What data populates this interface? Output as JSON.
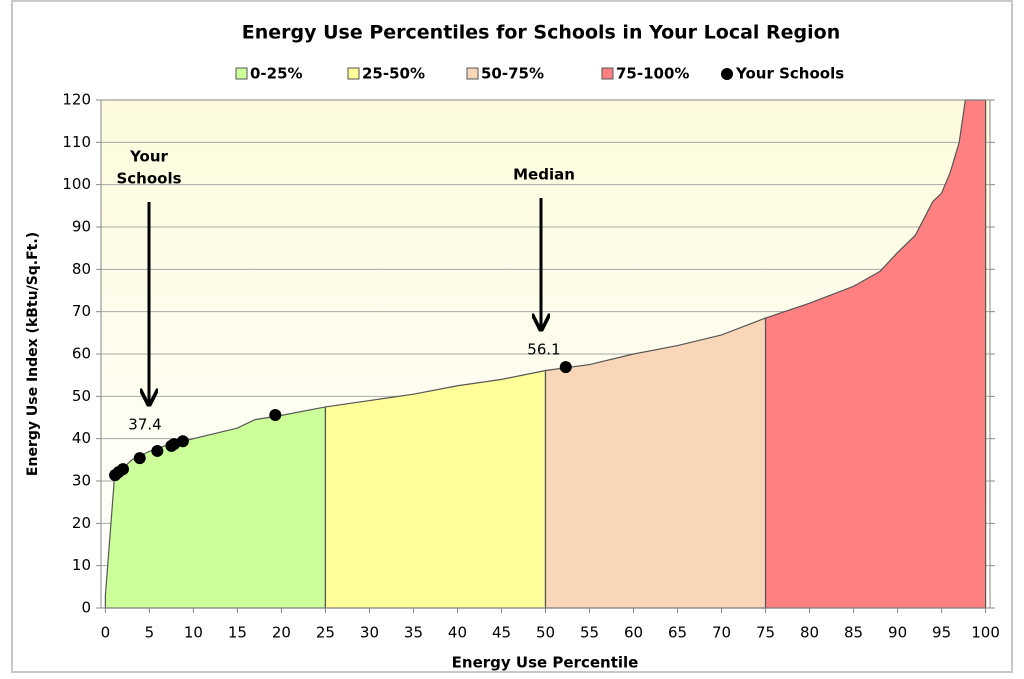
{
  "chart_data": {
    "type": "area",
    "title": "Energy Use Percentiles for Schools in Your Local Region",
    "x_label": "Energy Use Percentile",
    "y_label": "Energy Use Index  (kBtu/Sq.Ft.)",
    "xlim": [
      -0.5,
      100.5
    ],
    "ylim": [
      0,
      120
    ],
    "xticks": [
      0,
      5,
      10,
      15,
      20,
      25,
      30,
      35,
      40,
      45,
      50,
      55,
      60,
      65,
      70,
      75,
      80,
      85,
      90,
      95,
      100
    ],
    "yticks": [
      0,
      10,
      20,
      30,
      40,
      50,
      60,
      70,
      80,
      90,
      100,
      110,
      120
    ],
    "grid": true,
    "series": [
      {
        "name": "0-25%",
        "color": "#ccff99",
        "x": [
          0,
          1,
          2,
          3,
          5,
          7,
          10,
          15,
          17,
          20,
          25
        ],
        "values": [
          3,
          30,
          33,
          35,
          37,
          38.5,
          40,
          42.5,
          44.5,
          45.5,
          47.5
        ]
      },
      {
        "name": "25-50%",
        "color": "#ffff99",
        "x": [
          25,
          30,
          35,
          40,
          45,
          50
        ],
        "values": [
          47.5,
          49,
          50.5,
          52.5,
          54,
          56.1
        ]
      },
      {
        "name": "50-75%",
        "color": "#f9d6b8",
        "x": [
          50,
          55,
          60,
          65,
          70,
          75
        ],
        "values": [
          56.1,
          57.5,
          60,
          62,
          64.5,
          68.5
        ]
      },
      {
        "name": "75-100%",
        "color": "#ff8080",
        "x": [
          75,
          80,
          85,
          88,
          90,
          92,
          94,
          95,
          96,
          97,
          97.7,
          100
        ],
        "values": [
          68.5,
          72,
          76,
          79.5,
          84,
          88,
          96,
          98,
          103,
          110,
          120,
          120
        ]
      }
    ],
    "points": {
      "name": "Your Schools",
      "color": "#000000",
      "x": [
        1.1,
        1.5,
        2.0,
        3.9,
        5.9,
        7.5,
        7.8,
        8.8,
        19.3,
        52.3
      ],
      "values": [
        31.4,
        32.1,
        32.8,
        35.4,
        37.1,
        38.3,
        38.7,
        39.4,
        45.6,
        56.9
      ]
    },
    "annotations": [
      {
        "label": [
          "Your",
          "Schools"
        ],
        "value": 37.4
      },
      {
        "label": "Median",
        "value": 56.1
      }
    ]
  }
}
